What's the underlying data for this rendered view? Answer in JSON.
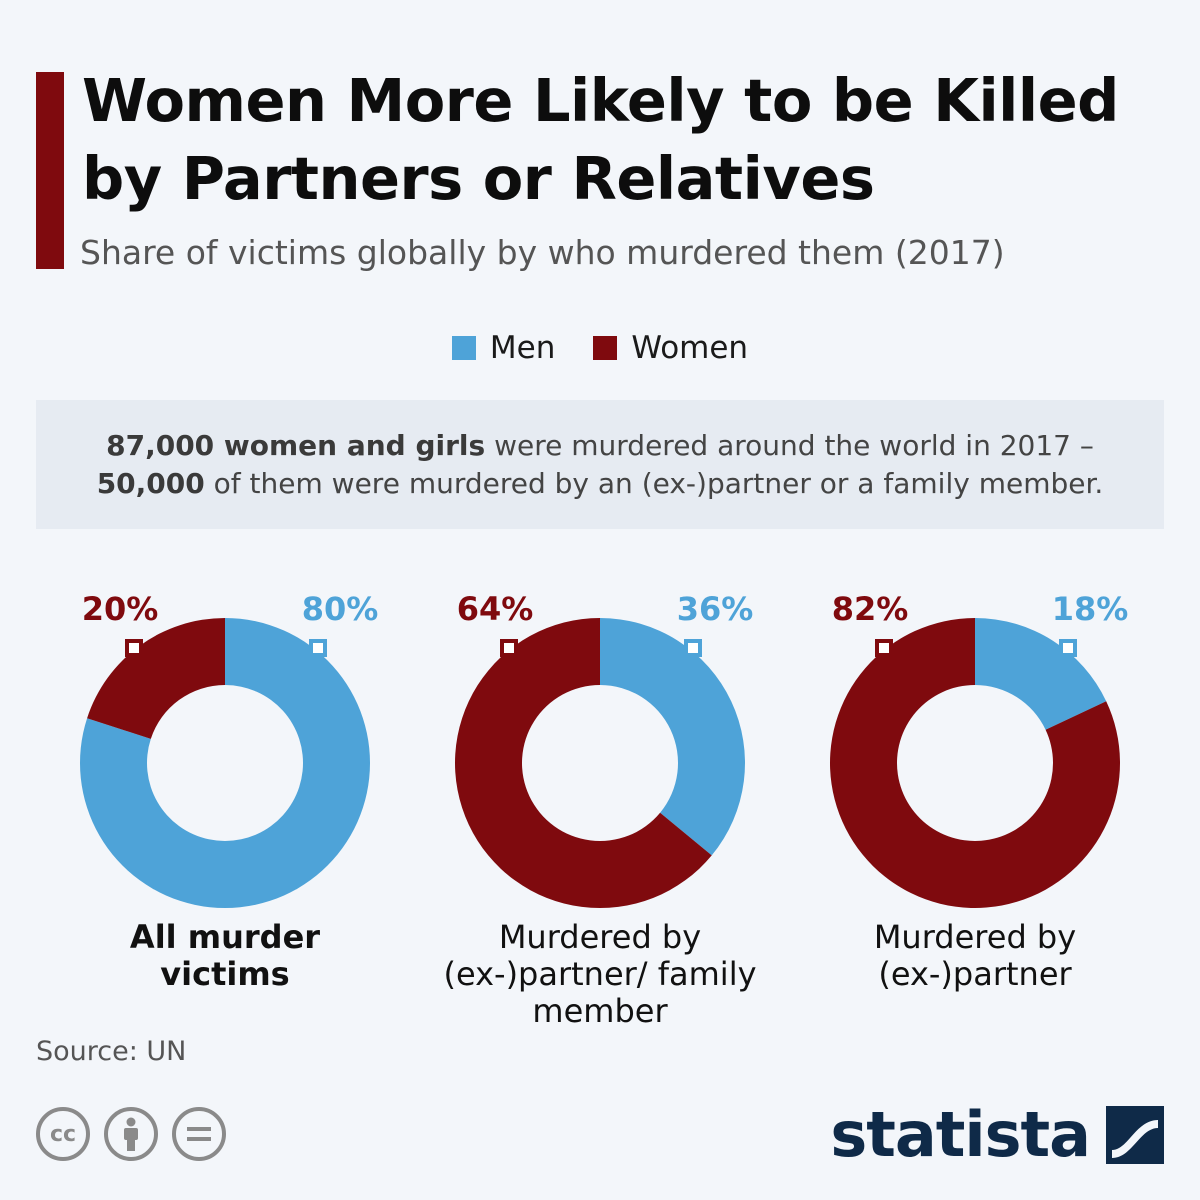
{
  "header": {
    "title": "Women More Likely to be Killed by Partners or Relatives",
    "subtitle": "Share of victims globally by who murdered them (2017)"
  },
  "legend": [
    {
      "label": "Men",
      "color": "#4ea3d8"
    },
    {
      "label": "Women",
      "color": "#7f0a0e"
    }
  ],
  "note": {
    "line1_bold": "87,000 women and girls",
    "line1_rest": " were murdered around the world in 2017 –",
    "line2_bold": "50,000",
    "line2_rest": " of them were murdered by an (ex-)partner or a family member."
  },
  "chart_data": [
    {
      "type": "pie",
      "title": "All murder victims",
      "series": [
        {
          "name": "Men",
          "value": 80
        },
        {
          "name": "Women",
          "value": 20
        }
      ],
      "labels": {
        "men": "80%",
        "women": "20%"
      }
    },
    {
      "type": "pie",
      "title": "Murdered by (ex-)partner/ family member",
      "series": [
        {
          "name": "Men",
          "value": 36
        },
        {
          "name": "Women",
          "value": 64
        }
      ],
      "labels": {
        "men": "36%",
        "women": "64%"
      }
    },
    {
      "type": "pie",
      "title": "Murdered by (ex-)partner",
      "series": [
        {
          "name": "Men",
          "value": 18
        },
        {
          "name": "Women",
          "value": 82
        }
      ],
      "labels": {
        "men": "18%",
        "women": "82%"
      }
    }
  ],
  "footer": {
    "source": "Source: UN",
    "brand": "statista",
    "license_icons": [
      "cc-icon",
      "by-attribution-icon",
      "nd-no-derivatives-icon"
    ]
  }
}
